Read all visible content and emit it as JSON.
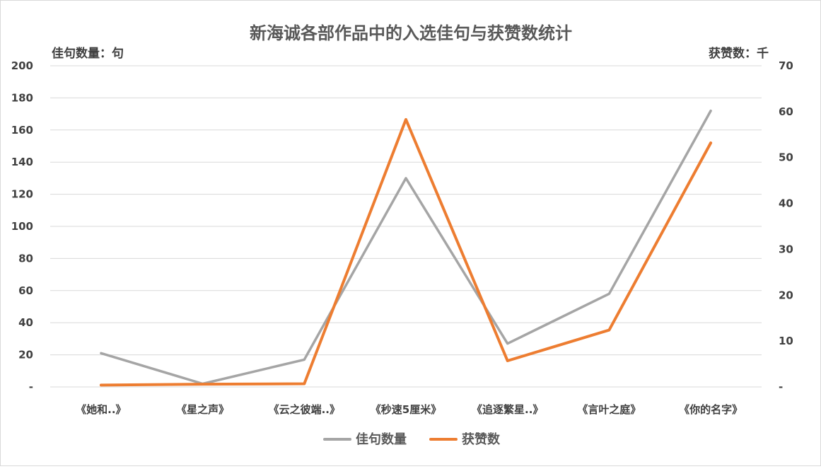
{
  "chart_data": {
    "type": "line",
    "title": "新海诚各部作品中的入选佳句与获赞数统计",
    "ylabel": "佳句数量：句",
    "y2label": "获赞数：千",
    "categories": [
      "《她和..》",
      "《星之声》",
      "《云之彼端..》",
      "《秒速5厘米》",
      "《追逐繁星..》",
      "《言叶之庭》",
      "《你的名字》"
    ],
    "ylim": [
      0,
      200
    ],
    "y2lim": [
      0,
      70
    ],
    "y_ticks": [
      "-",
      "20",
      "40",
      "60",
      "80",
      "100",
      "120",
      "140",
      "160",
      "180",
      "200"
    ],
    "y2_ticks": [
      "-",
      "10",
      "20",
      "30",
      "40",
      "50",
      "60",
      "70"
    ],
    "grid": true,
    "legend_position": "bottom",
    "series": [
      {
        "name": "佳句数量",
        "axis": "left",
        "color": "#a5a5a5",
        "values": [
          21,
          2,
          17,
          130,
          27,
          58,
          172
        ]
      },
      {
        "name": "获赞数",
        "axis": "right",
        "color": "#ed7d31",
        "values": [
          0.4,
          0.6,
          0.7,
          58.3,
          5.7,
          12.4,
          53.2
        ]
      }
    ]
  }
}
